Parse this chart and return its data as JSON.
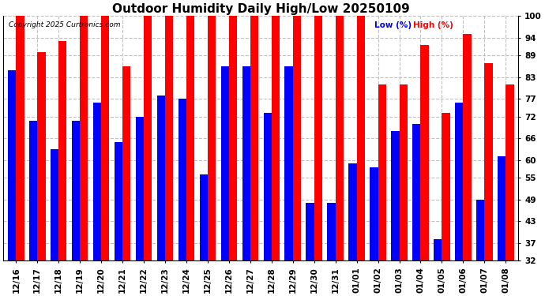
{
  "title": "Outdoor Humidity Daily High/Low 20250109",
  "copyright": "Copyright 2025 Curtronics.com",
  "legend_low": "Low (%)",
  "legend_high": "High (%)",
  "categories": [
    "12/16",
    "12/17",
    "12/18",
    "12/19",
    "12/20",
    "12/21",
    "12/22",
    "12/23",
    "12/24",
    "12/25",
    "12/26",
    "12/27",
    "12/28",
    "12/29",
    "12/30",
    "12/31",
    "01/01",
    "01/02",
    "01/03",
    "01/04",
    "01/05",
    "01/06",
    "01/07",
    "01/08"
  ],
  "high_values": [
    100,
    90,
    93,
    100,
    100,
    86,
    100,
    100,
    100,
    100,
    100,
    100,
    100,
    100,
    100,
    100,
    100,
    81,
    81,
    92,
    73,
    95,
    87,
    81
  ],
  "low_values": [
    85,
    71,
    63,
    71,
    76,
    65,
    72,
    78,
    77,
    56,
    86,
    86,
    73,
    86,
    48,
    48,
    59,
    58,
    68,
    70,
    38,
    76,
    49,
    61
  ],
  "ylim_min": 32,
  "ylim_max": 100,
  "yticks": [
    32,
    37,
    43,
    49,
    55,
    60,
    66,
    72,
    77,
    83,
    89,
    94,
    100
  ],
  "bar_width": 0.38,
  "high_color": "#FF0000",
  "low_color": "#0000FF",
  "background_color": "#FFFFFF",
  "grid_color": "#C0C0C0",
  "title_fontsize": 11,
  "tick_fontsize": 7.5
}
